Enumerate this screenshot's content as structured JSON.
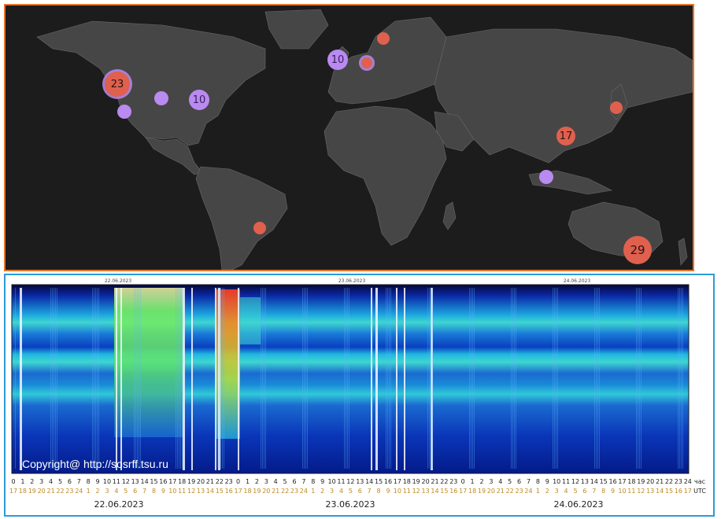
{
  "map": {
    "markers": [
      {
        "label": "23",
        "kind": "red-ring"
      },
      {
        "label": "",
        "kind": "purple"
      },
      {
        "label": "10",
        "kind": "purple"
      },
      {
        "label": "",
        "kind": "purple"
      },
      {
        "label": "10",
        "kind": "purple"
      },
      {
        "label": "",
        "kind": "red-ring"
      },
      {
        "label": "",
        "kind": "red"
      },
      {
        "label": "",
        "kind": "red"
      },
      {
        "label": "17",
        "kind": "red"
      },
      {
        "label": "",
        "kind": "purple"
      },
      {
        "label": "",
        "kind": "red"
      },
      {
        "label": "29",
        "kind": "red"
      }
    ]
  },
  "spectrogram": {
    "top_dates": [
      "22.06.2023",
      "23.06.2023",
      "24.06.2023"
    ],
    "bottom_dates": [
      "22.06.2023",
      "23.06.2023",
      "24.06.2023"
    ],
    "copyright": "Copyright@ http://sosrff.tsu.ru",
    "hours_row": [
      "0",
      "1",
      "2",
      "3",
      "4",
      "5",
      "6",
      "7",
      "8",
      "9",
      "10",
      "11",
      "12",
      "13",
      "14",
      "15",
      "16",
      "17",
      "18",
      "19",
      "20",
      "21",
      "22",
      "23",
      "0",
      "1",
      "2",
      "3",
      "4",
      "5",
      "6",
      "7",
      "8",
      "9",
      "10",
      "11",
      "12",
      "13",
      "14",
      "15",
      "16",
      "17",
      "18",
      "19",
      "20",
      "21",
      "22",
      "23",
      "0",
      "1",
      "2",
      "3",
      "4",
      "5",
      "6",
      "7",
      "8",
      "9",
      "10",
      "11",
      "12",
      "13",
      "14",
      "15",
      "16",
      "17",
      "18",
      "19",
      "20",
      "21",
      "22",
      "23",
      "24"
    ],
    "hours_row_suffix": "час",
    "utc_row": [
      "17",
      "18",
      "19",
      "20",
      "21",
      "22",
      "23",
      "24",
      "1",
      "2",
      "3",
      "4",
      "5",
      "6",
      "7",
      "8",
      "9",
      "10",
      "11",
      "12",
      "13",
      "14",
      "15",
      "16",
      "17",
      "18",
      "19",
      "20",
      "21",
      "22",
      "23",
      "24",
      "1",
      "2",
      "3",
      "4",
      "5",
      "6",
      "7",
      "8",
      "9",
      "10",
      "11",
      "12",
      "13",
      "14",
      "15",
      "16",
      "17",
      "18",
      "19",
      "20",
      "21",
      "22",
      "23",
      "24",
      "1",
      "2",
      "3",
      "4",
      "5",
      "6",
      "7",
      "8",
      "9",
      "10",
      "11",
      "12",
      "13",
      "14",
      "15",
      "16",
      "17"
    ],
    "utc_row_suffix": "UTC",
    "colors": {
      "background": "#001a8c",
      "band": "#17c4d8",
      "hot": "#5cf05a"
    }
  }
}
